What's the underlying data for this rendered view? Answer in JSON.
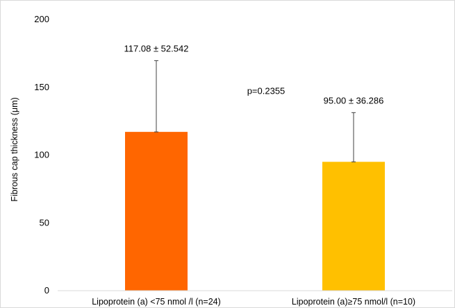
{
  "chart_data": {
    "type": "bar",
    "title": "",
    "xlabel": "",
    "ylabel": "Fibrous cap thickness (μm)",
    "ylim": [
      0,
      200
    ],
    "yticks": [
      0,
      50,
      100,
      150,
      200
    ],
    "grid": false,
    "categories": [
      "Lipoprotein (a) <75 nmol /l (n=24)",
      "Lipoprotein (a)≥75 nmol/l (n=10)"
    ],
    "values": [
      117.08,
      95.0
    ],
    "errors": [
      52.542,
      36.286
    ],
    "data_labels": [
      "117.08 ± 52.542",
      "95.00 ± 36.286"
    ],
    "colors": [
      "#ff6600",
      "#ffc000"
    ],
    "error_bar_color": "#404040",
    "annotation": "p=0.2355"
  }
}
